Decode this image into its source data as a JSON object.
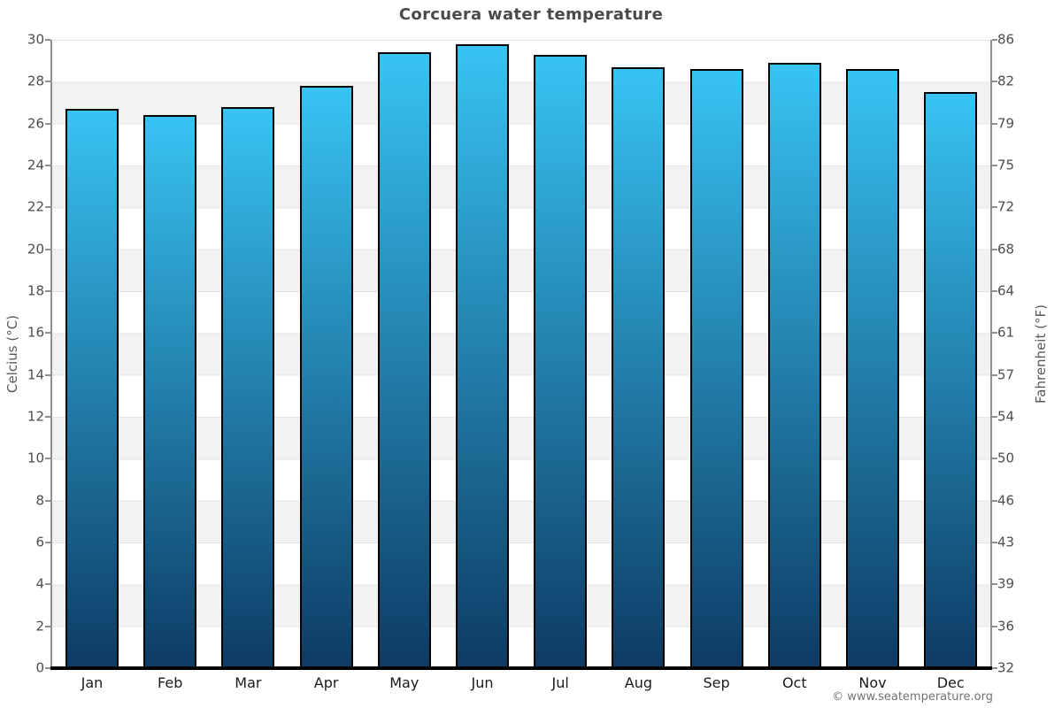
{
  "title": "Corcuera water temperature",
  "footer": "© www.seatemperature.org",
  "chart_data": {
    "type": "bar",
    "title": "Corcuera water temperature",
    "categories": [
      "Jan",
      "Feb",
      "Mar",
      "Apr",
      "May",
      "Jun",
      "Jul",
      "Aug",
      "Sep",
      "Oct",
      "Nov",
      "Dec"
    ],
    "values": [
      26.7,
      26.4,
      26.8,
      27.8,
      29.4,
      29.8,
      29.3,
      28.7,
      28.6,
      28.9,
      28.6,
      27.5
    ],
    "unit": "°C",
    "ylabel_left": "Celcius (°C)",
    "ylabel_right": "Fahrenheit (°F)",
    "ylim_celsius": [
      0,
      30
    ],
    "ytick_step_celsius": 2,
    "celsius_tick_labels": [
      "30",
      "28",
      "26",
      "24",
      "22",
      "20",
      "18",
      "16",
      "14",
      "12",
      "10",
      "8",
      "6",
      "4",
      "2",
      "0"
    ],
    "fahrenheit_tick_labels": [
      "86",
      "82",
      "79",
      "75",
      "72",
      "68",
      "64",
      "61",
      "57",
      "54",
      "50",
      "46",
      "43",
      "39",
      "36",
      "32"
    ],
    "grid": "alternating-horizontal-bands",
    "legend": "none",
    "colors": {
      "bar_gradient_top": "#38c3f3",
      "bar_gradient_bottom": "#0d3b63",
      "bar_border": "#000000",
      "band_gray": "#f2f2f2",
      "band_white": "#ffffff",
      "gridline": "#e4e4e4",
      "axis_line": "#8f8f8f",
      "baseline": "#000000",
      "title_text": "#4a4a4a",
      "tick_text": "#4d4d4d",
      "month_text": "#1a1a1a",
      "axis_title_text": "#595959",
      "footer_text": "#737373"
    }
  }
}
